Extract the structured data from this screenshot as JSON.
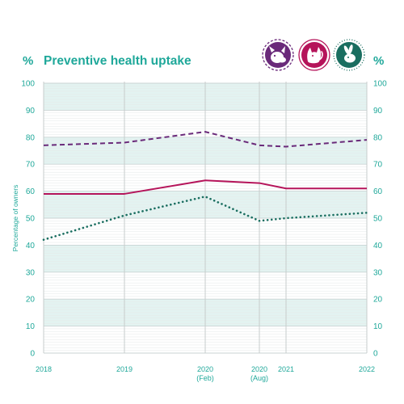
{
  "chart_data": {
    "type": "line",
    "title": "Preventive health uptake",
    "unit_left": "%",
    "unit_right": "%",
    "ylabel": "Percentage of owners",
    "ylim": [
      0,
      100
    ],
    "yticks": [
      0,
      10,
      20,
      30,
      40,
      50,
      60,
      70,
      80,
      90,
      100
    ],
    "x_points": [
      {
        "label": "2018",
        "sublabel": ""
      },
      {
        "label": "2019",
        "sublabel": ""
      },
      {
        "label": "2020",
        "sublabel": "(Feb)"
      },
      {
        "label": "2020",
        "sublabel": "(Aug)"
      },
      {
        "label": "2021",
        "sublabel": ""
      },
      {
        "label": "2022",
        "sublabel": ""
      }
    ],
    "grid": true,
    "legend": "top-right",
    "series": [
      {
        "icon": "dog-icon",
        "color": "#6a2a7a",
        "style": "dashed",
        "values": [
          77,
          78,
          82,
          77,
          76.5,
          79
        ]
      },
      {
        "icon": "cat-icon",
        "color": "#b5145a",
        "style": "solid",
        "values": [
          59,
          59,
          64,
          63,
          61,
          61
        ]
      },
      {
        "icon": "rabbit-icon",
        "color": "#1a6e60",
        "style": "dotted",
        "values": [
          42,
          51,
          58,
          49,
          50,
          52
        ]
      }
    ],
    "colors": {
      "accent": "#1fa89a",
      "band": "#e3f3f1",
      "gridline": "#cfd6d6"
    }
  }
}
